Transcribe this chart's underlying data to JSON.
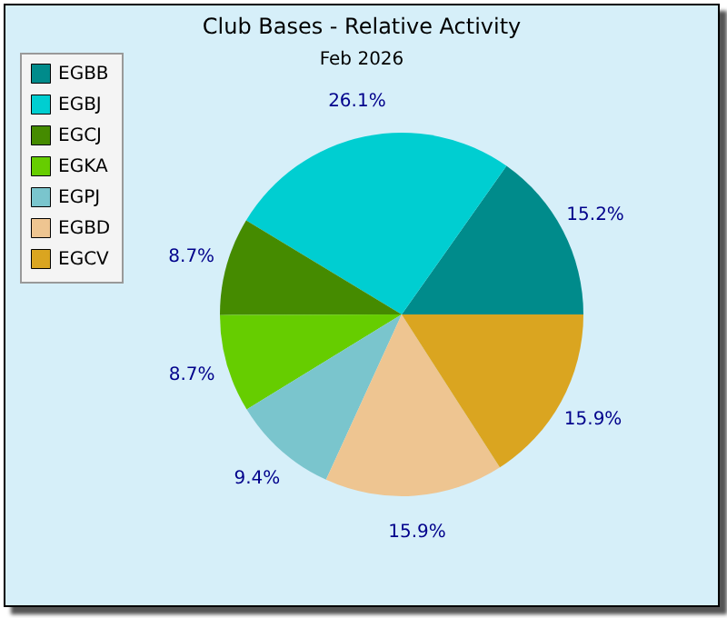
{
  "chart_data": {
    "type": "pie",
    "title": "Club Bases - Relative Activity",
    "subtitle": "Feb 2026",
    "categories": [
      "EGBB",
      "EGBJ",
      "EGCJ",
      "EGKA",
      "EGPJ",
      "EGBD",
      "EGCV"
    ],
    "values": [
      15.2,
      26.1,
      8.7,
      8.7,
      9.4,
      15.9,
      15.9
    ],
    "colors": [
      "#008b8b",
      "#00ced1",
      "#458b00",
      "#66cd00",
      "#7ac5cd",
      "#eec591",
      "#daa520"
    ],
    "value_labels": [
      "15.2%",
      "26.1%",
      "8.7%",
      "8.7%",
      "9.4%",
      "15.9%",
      "15.9%"
    ],
    "legend": "top left"
  }
}
